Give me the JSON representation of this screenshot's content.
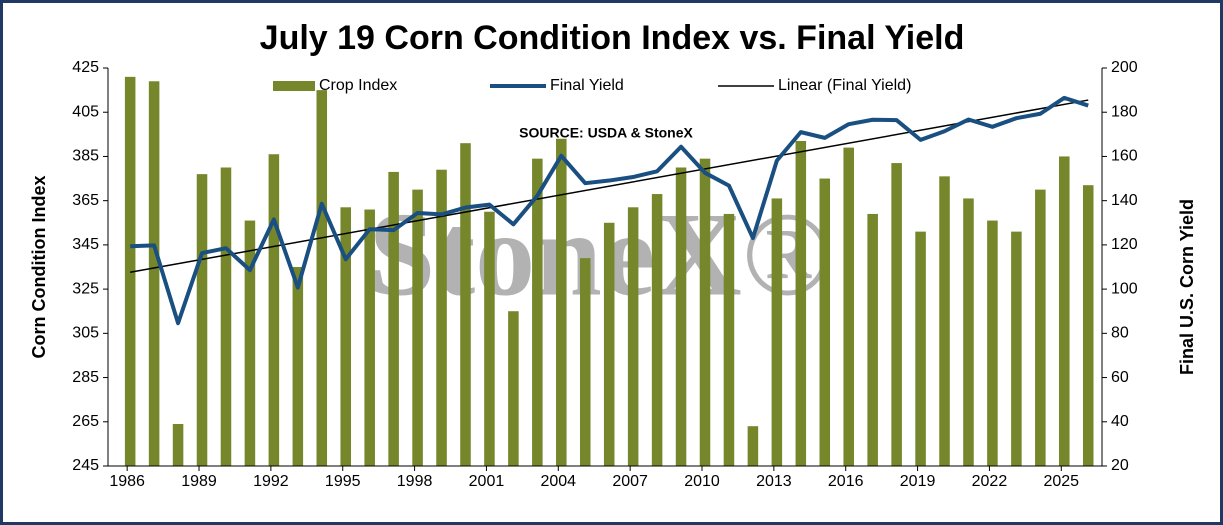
{
  "chart_data": {
    "type": "bar",
    "title": "July 19 Corn Condition Index vs. Final Yield",
    "annotation": "SOURCE: USDA & StoneX",
    "watermark": "StoneX®",
    "y_label": "Corn Condition Index",
    "y2_label": "Final U.S. Corn Yield",
    "x": [
      1986,
      1987,
      1988,
      1989,
      1990,
      1991,
      1992,
      1993,
      1994,
      1995,
      1996,
      1997,
      1998,
      1999,
      2000,
      2001,
      2002,
      2003,
      2004,
      2005,
      2006,
      2007,
      2008,
      2009,
      2010,
      2011,
      2012,
      2013,
      2014,
      2015,
      2016,
      2017,
      2018,
      2019,
      2020,
      2021,
      2022,
      2023,
      2024,
      2025,
      2026
    ],
    "xlim": [
      1985.2,
      2026.7
    ],
    "xticks": [
      1986,
      1989,
      1992,
      1995,
      1998,
      2001,
      2004,
      2007,
      2010,
      2013,
      2016,
      2019,
      2022,
      2025
    ],
    "ylim": [
      245,
      425
    ],
    "yticks": [
      245,
      265,
      285,
      305,
      325,
      345,
      365,
      385,
      405,
      425
    ],
    "y2lim": [
      20,
      200
    ],
    "y2ticks": [
      20,
      40,
      60,
      80,
      100,
      120,
      140,
      160,
      180,
      200
    ],
    "grid": false,
    "legend": "top",
    "series": [
      {
        "name": "Crop Index",
        "type": "bar",
        "color": "#76862a",
        "values": [
          421,
          419,
          264,
          377,
          380,
          356,
          386,
          335,
          415,
          362,
          361,
          378,
          370,
          379,
          391,
          360,
          315,
          384,
          393,
          339,
          355,
          362,
          368,
          380,
          384,
          359,
          263,
          366,
          392,
          375,
          389,
          359,
          382,
          351,
          376,
          366,
          356,
          351,
          370,
          385,
          372
        ]
      },
      {
        "name": "Final Yield",
        "type": "line",
        "axis": "y2",
        "color": "#1a4f82",
        "values": [
          119.4,
          119.8,
          84.6,
          116.3,
          118.5,
          108.6,
          131.5,
          100.7,
          138.6,
          113.5,
          127.1,
          126.7,
          134.4,
          133.8,
          136.9,
          138.2,
          129.3,
          142.2,
          160.3,
          147.9,
          149.1,
          150.7,
          153.3,
          164.4,
          152.6,
          146.8,
          123.1,
          158.1,
          171.0,
          168.4,
          174.6,
          176.6,
          176.4,
          167.5,
          171.4,
          176.7,
          173.4,
          177.3,
          179.3,
          186.5,
          183.0
        ]
      }
    ],
    "trendline": {
      "name": "Linear (Final Yield)",
      "of_series": 1,
      "color": "#000000"
    }
  }
}
